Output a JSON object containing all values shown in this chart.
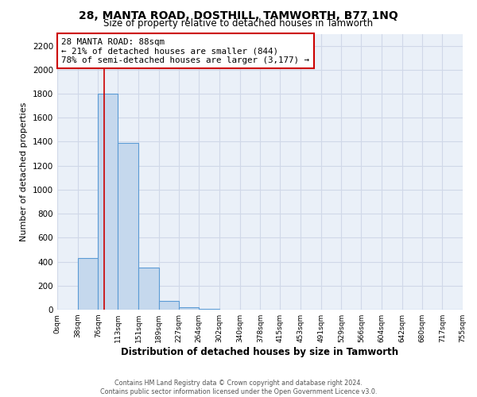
{
  "title1": "28, MANTA ROAD, DOSTHILL, TAMWORTH, B77 1NQ",
  "title2": "Size of property relative to detached houses in Tamworth",
  "xlabel": "Distribution of detached houses by size in Tamworth",
  "ylabel": "Number of detached properties",
  "bin_edges": [
    0,
    38,
    76,
    113,
    151,
    189,
    227,
    264,
    302,
    340,
    378,
    415,
    453,
    491,
    529,
    566,
    604,
    642,
    680,
    717,
    755
  ],
  "bin_counts": [
    0,
    430,
    1800,
    1390,
    350,
    75,
    20,
    5,
    0,
    0,
    0,
    0,
    0,
    0,
    0,
    0,
    0,
    0,
    0,
    0
  ],
  "tick_labels": [
    "0sqm",
    "38sqm",
    "76sqm",
    "113sqm",
    "151sqm",
    "189sqm",
    "227sqm",
    "264sqm",
    "302sqm",
    "340sqm",
    "378sqm",
    "415sqm",
    "453sqm",
    "491sqm",
    "529sqm",
    "566sqm",
    "604sqm",
    "642sqm",
    "680sqm",
    "717sqm",
    "755sqm"
  ],
  "bar_color": "#c5d8ed",
  "bar_edge_color": "#5b9bd5",
  "grid_color": "#d0d8e8",
  "background_color": "#eaf0f8",
  "property_line_x": 88,
  "property_line_color": "#cc0000",
  "annotation_line1": "28 MANTA ROAD: 88sqm",
  "annotation_line2": "← 21% of detached houses are smaller (844)",
  "annotation_line3": "78% of semi-detached houses are larger (3,177) →",
  "annotation_box_color": "#ffffff",
  "annotation_box_edge": "#cc0000",
  "ylim": [
    0,
    2300
  ],
  "yticks": [
    0,
    200,
    400,
    600,
    800,
    1000,
    1200,
    1400,
    1600,
    1800,
    2000,
    2200
  ],
  "footer1": "Contains HM Land Registry data © Crown copyright and database right 2024.",
  "footer2": "Contains public sector information licensed under the Open Government Licence v3.0."
}
